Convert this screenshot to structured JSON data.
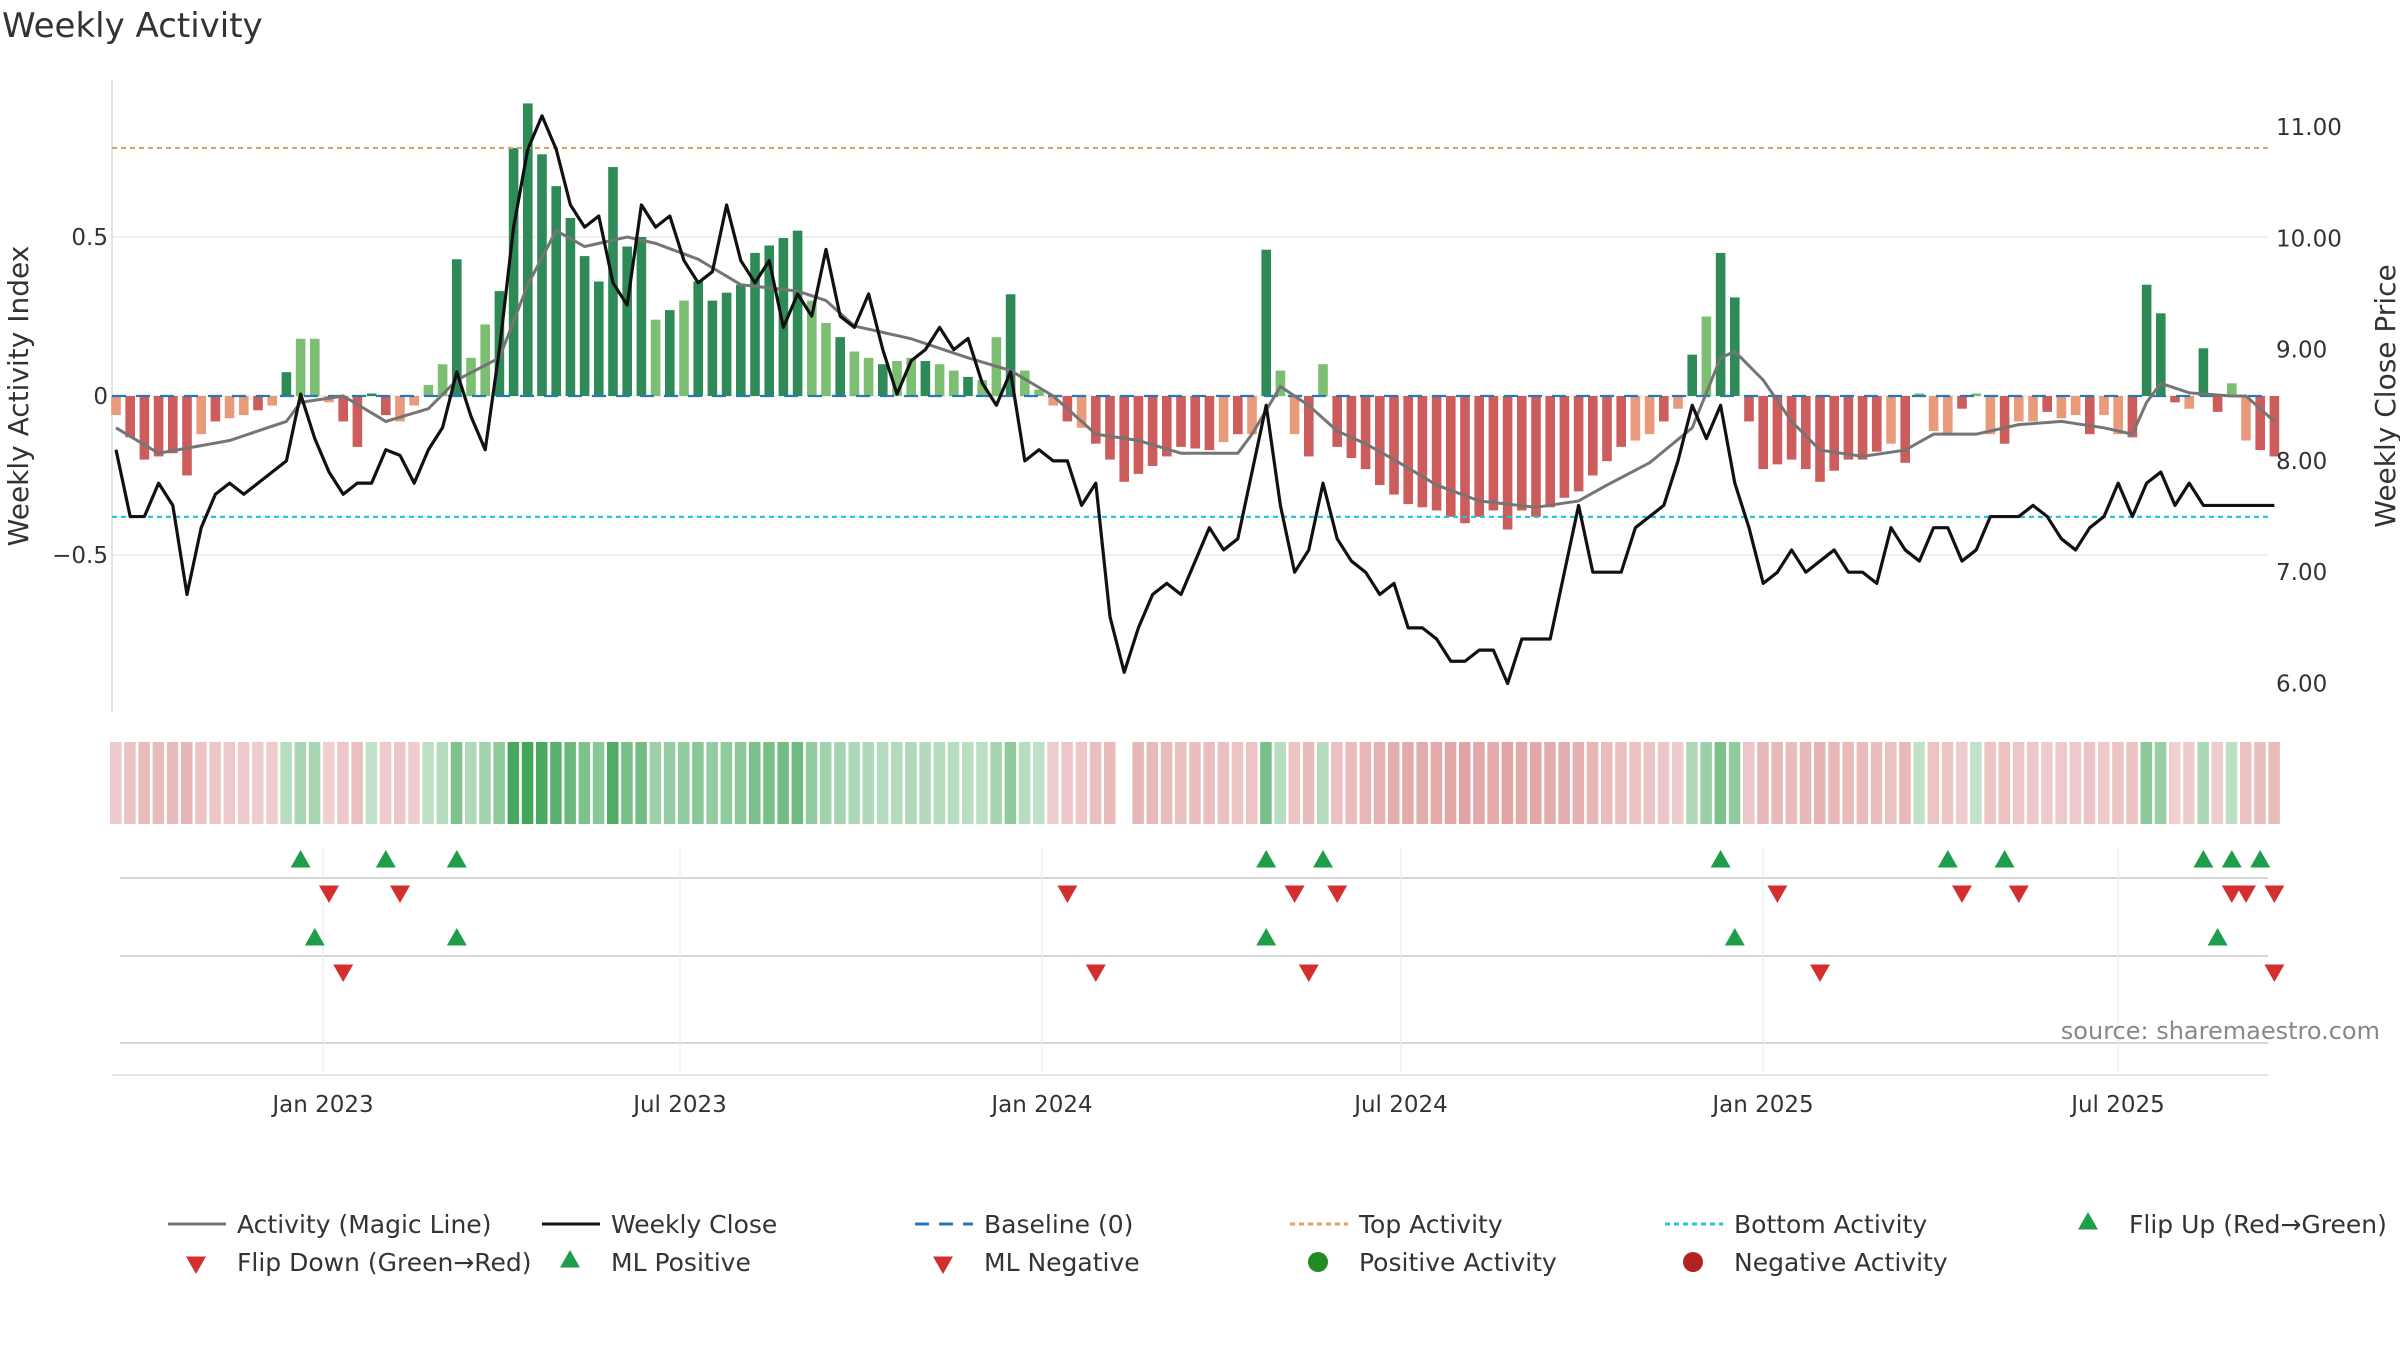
{
  "title": "Weekly Activity",
  "source": "source: sharemaestro.com",
  "colors": {
    "magic": "#757575",
    "close": "#111111",
    "baseline": "#2878b5",
    "top": "#e0a060",
    "bottom": "#26c6da",
    "green_strong": "#2e8b57",
    "green_light": "#7dbf72",
    "red_strong": "#cd5c5c",
    "red_light": "#e89a7a",
    "flip_up": "#1e9e4a",
    "flip_down": "#d32f2f",
    "pos_dot": "#228b22",
    "neg_dot": "#b22222"
  },
  "chart_data": {
    "type": "bar",
    "title": "Weekly Activity",
    "ylabel": "Weekly Activity Index",
    "y2label": "Weekly Close Price",
    "ylim": [
      -1.0,
      1.0
    ],
    "y2lim": [
      5.8,
      11.5
    ],
    "yticks": [
      {
        "v": 0.5,
        "label": "0.5"
      },
      {
        "v": 0,
        "label": "0"
      },
      {
        "v": -0.5,
        "label": "−0.5"
      }
    ],
    "y2ticks": [
      "11.00",
      "10.00",
      "9.00",
      "8.00",
      "7.00",
      "6.00"
    ],
    "x_ticks": [
      "Jan 2023",
      "Jul 2023",
      "Jan 2024",
      "Jul 2024",
      "Jan 2025",
      "Jul 2025"
    ],
    "start_label": "Oct 2022",
    "end_label": "Oct 2025",
    "top_activity": 0.78,
    "bottom_activity": -0.38,
    "baseline": 0,
    "activity_anchors": [
      [
        0,
        -0.06
      ],
      [
        2,
        -0.2
      ],
      [
        4,
        -0.18
      ],
      [
        5,
        -0.25
      ],
      [
        6,
        -0.12
      ],
      [
        7,
        -0.08
      ],
      [
        9,
        -0.06
      ],
      [
        11,
        -0.03
      ],
      [
        13,
        0.18
      ],
      [
        14,
        0.18
      ],
      [
        15,
        -0.02
      ],
      [
        16,
        -0.08
      ],
      [
        17,
        -0.16
      ],
      [
        18,
        0.01
      ],
      [
        19,
        -0.06
      ],
      [
        20,
        -0.08
      ],
      [
        21,
        -0.03
      ],
      [
        23,
        0.1
      ],
      [
        24,
        0.43
      ],
      [
        25,
        0.12
      ],
      [
        27,
        0.33
      ],
      [
        28,
        0.78
      ],
      [
        29,
        0.92
      ],
      [
        30,
        0.76
      ],
      [
        32,
        0.56
      ],
      [
        33,
        0.44
      ],
      [
        34,
        0.36
      ],
      [
        35,
        0.72
      ],
      [
        36,
        0.47
      ],
      [
        37,
        0.5
      ],
      [
        38,
        0.24
      ],
      [
        40,
        0.3
      ],
      [
        41,
        0.36
      ],
      [
        42,
        0.3
      ],
      [
        44,
        0.35
      ],
      [
        45,
        0.45
      ],
      [
        48,
        0.52
      ],
      [
        49,
        0.3
      ],
      [
        50,
        0.23
      ],
      [
        52,
        0.14
      ],
      [
        54,
        0.1
      ],
      [
        56,
        0.12
      ],
      [
        58,
        0.1
      ],
      [
        60,
        0.06
      ],
      [
        61,
        0.05
      ],
      [
        63,
        0.32
      ],
      [
        64,
        0.08
      ],
      [
        65,
        0.02
      ],
      [
        67,
        -0.08
      ],
      [
        68,
        -0.1
      ],
      [
        70,
        -0.2
      ],
      [
        71,
        -0.27
      ],
      [
        73,
        -0.22
      ],
      [
        75,
        -0.16
      ],
      [
        77,
        -0.17
      ],
      [
        79,
        -0.12
      ],
      [
        80,
        -0.12
      ],
      [
        81,
        0.46
      ],
      [
        82,
        0.08
      ],
      [
        83,
        -0.12
      ],
      [
        84,
        -0.19
      ],
      [
        85,
        0.1
      ],
      [
        86,
        -0.16
      ],
      [
        88,
        -0.23
      ],
      [
        89,
        -0.28
      ],
      [
        91,
        -0.34
      ],
      [
        93,
        -0.36
      ],
      [
        95,
        -0.4
      ],
      [
        97,
        -0.36
      ],
      [
        98,
        -0.42
      ],
      [
        99,
        -0.36
      ],
      [
        100,
        -0.38
      ],
      [
        102,
        -0.32
      ],
      [
        103,
        -0.3
      ],
      [
        104,
        -0.25
      ],
      [
        106,
        -0.16
      ],
      [
        108,
        -0.12
      ],
      [
        110,
        -0.04
      ],
      [
        111,
        0.13
      ],
      [
        112,
        0.25
      ],
      [
        113,
        0.45
      ],
      [
        114,
        0.31
      ],
      [
        115,
        -0.08
      ],
      [
        116,
        -0.23
      ],
      [
        118,
        -0.2
      ],
      [
        119,
        -0.23
      ],
      [
        120,
        -0.27
      ],
      [
        122,
        -0.2
      ],
      [
        123,
        -0.2
      ],
      [
        125,
        -0.15
      ],
      [
        126,
        -0.21
      ],
      [
        127,
        0.01
      ],
      [
        128,
        -0.11
      ],
      [
        129,
        -0.12
      ],
      [
        130,
        -0.04
      ],
      [
        131,
        0.0
      ],
      [
        132,
        -0.12
      ],
      [
        133,
        -0.15
      ],
      [
        134,
        -0.08
      ],
      [
        135,
        -0.08
      ],
      [
        136,
        -0.05
      ],
      [
        137,
        -0.07
      ],
      [
        138,
        -0.06
      ],
      [
        139,
        -0.12
      ],
      [
        140,
        -0.06
      ],
      [
        141,
        -0.12
      ],
      [
        142,
        -0.13
      ],
      [
        143,
        0.35
      ],
      [
        144,
        0.26
      ],
      [
        145,
        -0.02
      ],
      [
        146,
        -0.04
      ],
      [
        147,
        0.15
      ],
      [
        148,
        -0.05
      ],
      [
        149,
        0.04
      ],
      [
        150,
        -0.14
      ],
      [
        151,
        -0.17
      ],
      [
        152,
        -0.19
      ]
    ],
    "close_anchors": [
      [
        0,
        8.1
      ],
      [
        1,
        7.5
      ],
      [
        2,
        7.5
      ],
      [
        3,
        7.8
      ],
      [
        4,
        7.6
      ],
      [
        5,
        6.8
      ],
      [
        6,
        7.4
      ],
      [
        7,
        7.7
      ],
      [
        8,
        7.8
      ],
      [
        9,
        7.7
      ],
      [
        10,
        7.8
      ],
      [
        11,
        7.9
      ],
      [
        12,
        8.0
      ],
      [
        13,
        8.6
      ],
      [
        14,
        8.2
      ],
      [
        15,
        7.9
      ],
      [
        16,
        7.7
      ],
      [
        17,
        7.8
      ],
      [
        18,
        7.8
      ],
      [
        19,
        8.1
      ],
      [
        20,
        8.05
      ],
      [
        21,
        7.8
      ],
      [
        22,
        8.1
      ],
      [
        23,
        8.3
      ],
      [
        24,
        8.8
      ],
      [
        25,
        8.4
      ],
      [
        26,
        8.1
      ],
      [
        27,
        9.0
      ],
      [
        28,
        10.1
      ],
      [
        29,
        10.8
      ],
      [
        30,
        11.1
      ],
      [
        31,
        10.8
      ],
      [
        32,
        10.3
      ],
      [
        33,
        10.1
      ],
      [
        34,
        10.2
      ],
      [
        35,
        9.6
      ],
      [
        36,
        9.4
      ],
      [
        37,
        10.3
      ],
      [
        38,
        10.1
      ],
      [
        39,
        10.2
      ],
      [
        40,
        9.8
      ],
      [
        41,
        9.6
      ],
      [
        42,
        9.7
      ],
      [
        43,
        10.3
      ],
      [
        44,
        9.8
      ],
      [
        45,
        9.6
      ],
      [
        46,
        9.8
      ],
      [
        47,
        9.2
      ],
      [
        48,
        9.5
      ],
      [
        49,
        9.3
      ],
      [
        50,
        9.9
      ],
      [
        51,
        9.3
      ],
      [
        52,
        9.2
      ],
      [
        53,
        9.5
      ],
      [
        54,
        9.0
      ],
      [
        55,
        8.6
      ],
      [
        56,
        8.9
      ],
      [
        57,
        9.0
      ],
      [
        58,
        9.2
      ],
      [
        59,
        9.0
      ],
      [
        60,
        9.1
      ],
      [
        61,
        8.7
      ],
      [
        62,
        8.5
      ],
      [
        63,
        8.8
      ],
      [
        64,
        8.0
      ],
      [
        65,
        8.1
      ],
      [
        66,
        8.0
      ],
      [
        67,
        8.0
      ],
      [
        68,
        7.6
      ],
      [
        69,
        7.8
      ],
      [
        70,
        6.6
      ],
      [
        71,
        6.1
      ],
      [
        72,
        6.5
      ],
      [
        73,
        6.8
      ],
      [
        74,
        6.9
      ],
      [
        75,
        6.8
      ],
      [
        76,
        7.1
      ],
      [
        77,
        7.4
      ],
      [
        78,
        7.2
      ],
      [
        79,
        7.3
      ],
      [
        80,
        7.9
      ],
      [
        81,
        8.5
      ],
      [
        82,
        7.6
      ],
      [
        83,
        7.0
      ],
      [
        84,
        7.2
      ],
      [
        85,
        7.8
      ],
      [
        86,
        7.3
      ],
      [
        87,
        7.1
      ],
      [
        88,
        7.0
      ],
      [
        89,
        6.8
      ],
      [
        90,
        6.9
      ],
      [
        91,
        6.5
      ],
      [
        92,
        6.5
      ],
      [
        93,
        6.4
      ],
      [
        94,
        6.2
      ],
      [
        95,
        6.2
      ],
      [
        96,
        6.3
      ],
      [
        97,
        6.3
      ],
      [
        98,
        6.0
      ],
      [
        99,
        6.4
      ],
      [
        100,
        6.4
      ],
      [
        101,
        6.4
      ],
      [
        102,
        7.0
      ],
      [
        103,
        7.6
      ],
      [
        104,
        7.0
      ],
      [
        105,
        7.0
      ],
      [
        106,
        7.0
      ],
      [
        107,
        7.4
      ],
      [
        108,
        7.5
      ],
      [
        109,
        7.6
      ],
      [
        110,
        8.0
      ],
      [
        111,
        8.5
      ],
      [
        112,
        8.2
      ],
      [
        113,
        8.5
      ],
      [
        114,
        7.8
      ],
      [
        115,
        7.4
      ],
      [
        116,
        6.9
      ],
      [
        117,
        7.0
      ],
      [
        118,
        7.2
      ],
      [
        119,
        7.0
      ],
      [
        120,
        7.1
      ],
      [
        121,
        7.2
      ],
      [
        122,
        7.0
      ],
      [
        123,
        7.0
      ],
      [
        124,
        6.9
      ],
      [
        125,
        7.4
      ],
      [
        126,
        7.2
      ],
      [
        127,
        7.1
      ],
      [
        128,
        7.4
      ],
      [
        129,
        7.4
      ],
      [
        130,
        7.1
      ],
      [
        131,
        7.2
      ],
      [
        132,
        7.5
      ],
      [
        133,
        7.5
      ],
      [
        134,
        7.5
      ],
      [
        135,
        7.6
      ],
      [
        136,
        7.5
      ],
      [
        137,
        7.3
      ],
      [
        138,
        7.2
      ],
      [
        139,
        7.4
      ],
      [
        140,
        7.5
      ],
      [
        141,
        7.8
      ],
      [
        142,
        7.5
      ],
      [
        143,
        7.8
      ],
      [
        144,
        7.9
      ],
      [
        145,
        7.6
      ],
      [
        146,
        7.8
      ],
      [
        147,
        7.6
      ],
      [
        148,
        7.6
      ],
      [
        149,
        7.6
      ],
      [
        150,
        7.6
      ],
      [
        151,
        7.6
      ],
      [
        152,
        7.6
      ]
    ],
    "magic_anchors": [
      [
        0,
        -0.1
      ],
      [
        3,
        -0.18
      ],
      [
        8,
        -0.14
      ],
      [
        12,
        -0.08
      ],
      [
        13,
        -0.02
      ],
      [
        16,
        0.0
      ],
      [
        19,
        -0.08
      ],
      [
        22,
        -0.04
      ],
      [
        24,
        0.05
      ],
      [
        27,
        0.12
      ],
      [
        29,
        0.35
      ],
      [
        31,
        0.52
      ],
      [
        33,
        0.47
      ],
      [
        36,
        0.5
      ],
      [
        38,
        0.48
      ],
      [
        41,
        0.43
      ],
      [
        44,
        0.35
      ],
      [
        48,
        0.33
      ],
      [
        50,
        0.3
      ],
      [
        52,
        0.22
      ],
      [
        56,
        0.18
      ],
      [
        60,
        0.12
      ],
      [
        63,
        0.08
      ],
      [
        66,
        0.0
      ],
      [
        69,
        -0.12
      ],
      [
        72,
        -0.14
      ],
      [
        75,
        -0.18
      ],
      [
        79,
        -0.18
      ],
      [
        80,
        -0.12
      ],
      [
        82,
        0.03
      ],
      [
        84,
        -0.03
      ],
      [
        86,
        -0.11
      ],
      [
        88,
        -0.15
      ],
      [
        90,
        -0.2
      ],
      [
        93,
        -0.28
      ],
      [
        96,
        -0.33
      ],
      [
        100,
        -0.35
      ],
      [
        103,
        -0.33
      ],
      [
        105,
        -0.28
      ],
      [
        108,
        -0.21
      ],
      [
        111,
        -0.1
      ],
      [
        113,
        0.12
      ],
      [
        114,
        0.14
      ],
      [
        116,
        0.05
      ],
      [
        118,
        -0.08
      ],
      [
        120,
        -0.17
      ],
      [
        123,
        -0.19
      ],
      [
        126,
        -0.17
      ],
      [
        128,
        -0.12
      ],
      [
        131,
        -0.12
      ],
      [
        134,
        -0.09
      ],
      [
        137,
        -0.08
      ],
      [
        140,
        -0.1
      ],
      [
        142,
        -0.12
      ],
      [
        143,
        -0.02
      ],
      [
        144,
        0.04
      ],
      [
        146,
        0.01
      ],
      [
        149,
        0.0
      ],
      [
        150,
        0.0
      ],
      [
        152,
        -0.08
      ]
    ],
    "flip_up_row1": [
      13,
      19,
      24,
      81,
      85,
      113,
      129,
      133,
      147,
      149,
      151
    ],
    "flip_down_row1": [
      15,
      20,
      67,
      83,
      86,
      117,
      130,
      134,
      149,
      150,
      152
    ],
    "ml_positive_row2": [
      14,
      24,
      81,
      114,
      148
    ],
    "ml_negative_row2": [
      16,
      69,
      84,
      120,
      152
    ],
    "legend": [
      {
        "label": "Activity (Magic Line)",
        "marker": "line-solid-grey"
      },
      {
        "label": "Weekly Close",
        "marker": "line-solid-black"
      },
      {
        "label": "Baseline (0)",
        "marker": "line-dashed-blue"
      },
      {
        "label": "Top Activity",
        "marker": "line-dotted-orange"
      },
      {
        "label": "Bottom Activity",
        "marker": "line-dotted-cyan"
      },
      {
        "label": "Flip Up (Red→Green)",
        "marker": "triangle-up-green"
      },
      {
        "label": "Flip Down (Green→Red)",
        "marker": "triangle-down-red"
      },
      {
        "label": "ML Positive",
        "marker": "triangle-up-green"
      },
      {
        "label": "ML Negative",
        "marker": "triangle-down-red"
      },
      {
        "label": "Positive Activity",
        "marker": "circle-green"
      },
      {
        "label": "Negative Activity",
        "marker": "circle-red"
      }
    ]
  }
}
